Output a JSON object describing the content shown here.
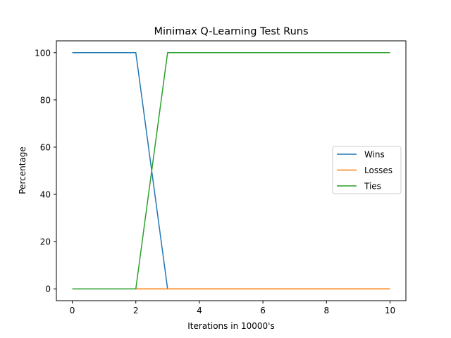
{
  "chart_data": {
    "type": "line",
    "title": "Minimax Q-Learning Test Runs",
    "xlabel": "Iterations in 10000's",
    "ylabel": "Percentage",
    "xlim": [
      -0.5,
      10.5
    ],
    "ylim": [
      -5,
      105
    ],
    "xticks": [
      0,
      2,
      4,
      6,
      8,
      10
    ],
    "yticks": [
      0,
      20,
      40,
      60,
      80,
      100
    ],
    "grid": false,
    "legend_position": "center-right",
    "x": [
      0,
      1,
      2,
      3,
      4,
      5,
      6,
      7,
      8,
      9,
      10
    ],
    "series": [
      {
        "name": "Wins",
        "color": "#1f77b4",
        "values": [
          100,
          100,
          100,
          0,
          0,
          0,
          0,
          0,
          0,
          0,
          0
        ]
      },
      {
        "name": "Losses",
        "color": "#ff7f0e",
        "values": [
          0,
          0,
          0,
          0,
          0,
          0,
          0,
          0,
          0,
          0,
          0
        ]
      },
      {
        "name": "Ties",
        "color": "#2ca02c",
        "values": [
          0,
          0,
          0,
          100,
          100,
          100,
          100,
          100,
          100,
          100,
          100
        ]
      }
    ]
  }
}
